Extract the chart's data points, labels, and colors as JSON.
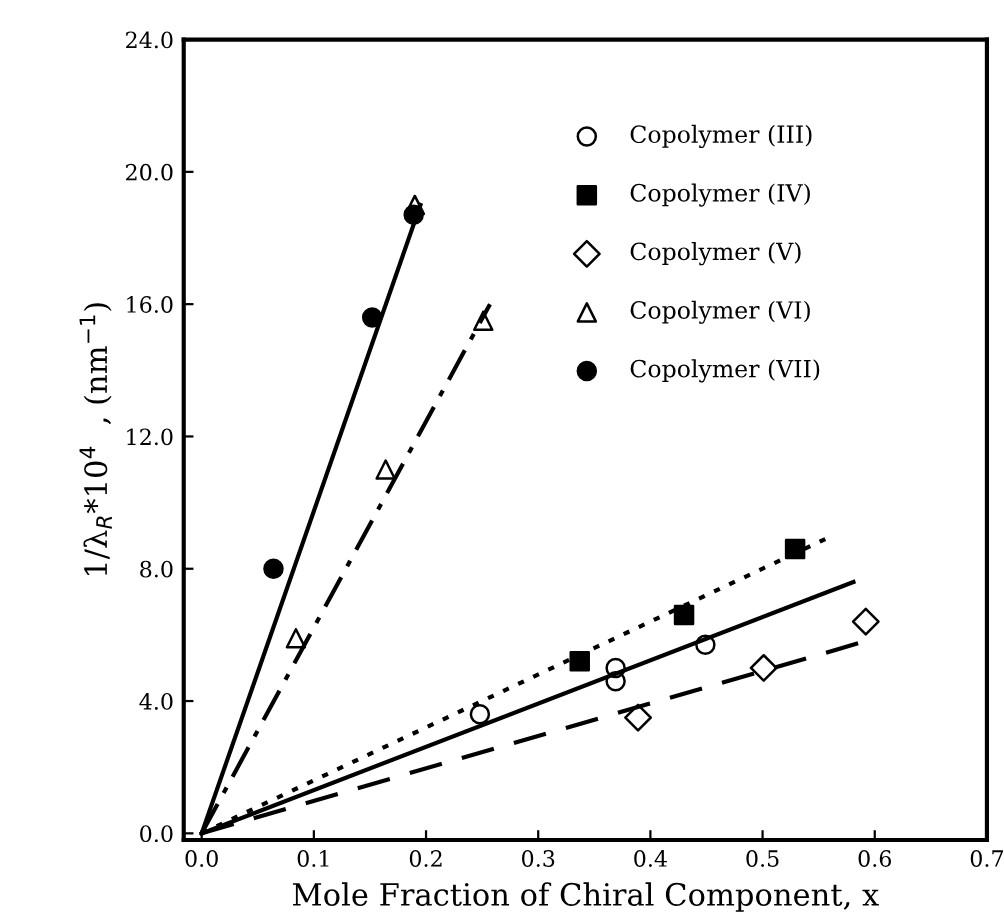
{
  "chart_data": {
    "type": "scatter",
    "xlabel": "Mole Fraction of Chiral Component, x",
    "ylabel": "1/λ$_{R}$*10$^{4}$  , (nm$^{−1}$)",
    "xlim": [
      -0.016,
      0.7
    ],
    "ylim": [
      -0.2,
      24.0
    ],
    "xticks": [
      {
        "value": 0,
        "label": "0.0"
      },
      0.1,
      0.2,
      0.3,
      0.4,
      0.5,
      0.6,
      0.7
    ],
    "yticks": [
      {
        "value": 0,
        "label": "0.0"
      },
      {
        "value": 4,
        "label": "4.0"
      },
      {
        "value": 8,
        "label": "8.0"
      },
      {
        "value": 12,
        "label": "12.0"
      },
      {
        "value": 16,
        "label": "16.0"
      },
      {
        "value": 20,
        "label": "20.0"
      },
      {
        "value": 24,
        "label": "24.0"
      }
    ],
    "grid": false,
    "legend": "top right",
    "series": [
      {
        "name": "Copolymer (III)",
        "color": "#000000",
        "marker": "circle-open",
        "x": [
          0.248,
          0.369,
          0.369,
          0.449
        ],
        "values": [
          3.6,
          5.0,
          4.6,
          5.7
        ]
      },
      {
        "name": "Copolymer (IV)",
        "color": "#000000",
        "marker": "square",
        "x": [
          0.337,
          0.43,
          0.529
        ],
        "values": [
          5.2,
          6.6,
          8.6
        ]
      },
      {
        "name": "Copolymer (V)",
        "color": "#000000",
        "marker": "diamond-open",
        "x": [
          0.389,
          0.501,
          0.592
        ],
        "values": [
          3.5,
          5.0,
          6.4
        ]
      },
      {
        "name": "Copolymer (VI)",
        "color": "#000000",
        "marker": "triangle-open",
        "x": [
          0.084,
          0.164,
          0.251,
          0.19
        ],
        "values": [
          5.9,
          11.0,
          15.5,
          19.0
        ]
      },
      {
        "name": "Copolymer (VII)",
        "color": "#000000",
        "marker": "circle",
        "x": [
          0.064,
          0.152,
          0.189
        ],
        "values": [
          8.0,
          15.6,
          18.7
        ]
      },
      {
        "type": "line",
        "color": "#000000",
        "line_style": "solid",
        "x": [
          0,
          0.581
        ],
        "values": [
          0,
          7.6
        ]
      },
      {
        "type": "line",
        "color": "#000000",
        "line_style": "dotted",
        "x": [
          0,
          0.556
        ],
        "values": [
          0,
          8.9
        ]
      },
      {
        "type": "line",
        "color": "#000000",
        "line_style": "dashed",
        "x": [
          0,
          0.601
        ],
        "values": [
          0,
          5.9
        ]
      },
      {
        "type": "line",
        "color": "#000000",
        "line_style": "dashdot",
        "x": [
          0,
          0.257
        ],
        "values": [
          0,
          16.0
        ]
      },
      {
        "type": "line",
        "color": "#000000",
        "line_style": "solid",
        "x": [
          0,
          0.195
        ],
        "values": [
          0,
          19.0
        ]
      }
    ]
  }
}
